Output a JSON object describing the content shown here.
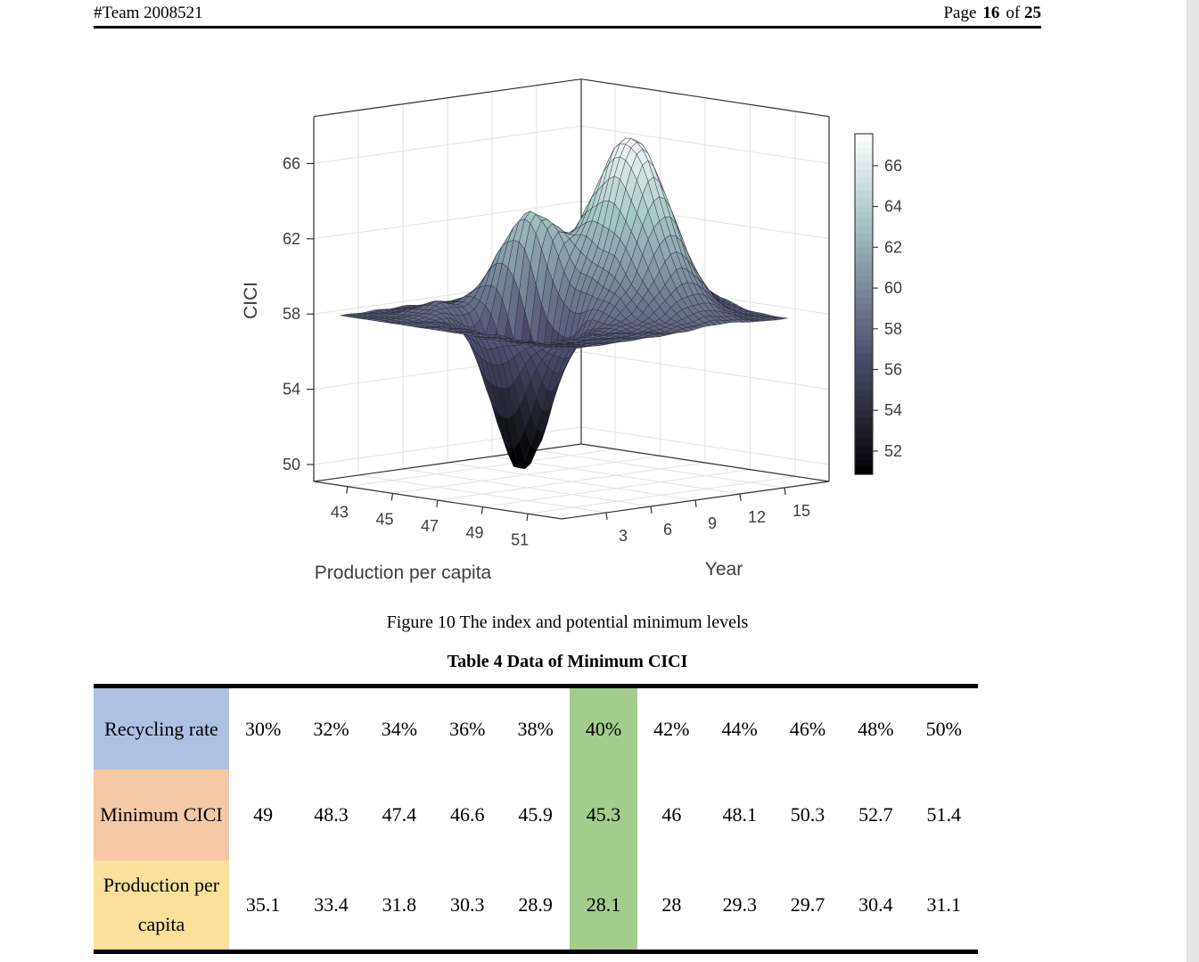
{
  "header": {
    "team": "#Team 2008521",
    "page_label": "Page",
    "page_number": "16",
    "of_label": "of",
    "page_total": "25"
  },
  "figure": {
    "caption": "Figure 10 The index and potential minimum levels"
  },
  "chart_data": {
    "type": "surface",
    "title": "",
    "xlabel": "Production per capita",
    "ylabel": "Year",
    "zlabel": "CICI",
    "x_ticks": [
      43,
      45,
      47,
      49,
      51
    ],
    "y_ticks": [
      3,
      6,
      9,
      12,
      15
    ],
    "z_ticks": [
      50,
      54,
      58,
      62,
      66
    ],
    "x_range": [
      41.5,
      52.5
    ],
    "y_range": [
      0,
      18
    ],
    "z_range": [
      49.1,
      68.5
    ],
    "surface_domain": {
      "x": [
        42,
        52
      ],
      "y": [
        1,
        16
      ]
    },
    "colormap": "bone",
    "color_range": [
      50.8,
      67.6
    ],
    "colorbar_ticks": [
      52,
      54,
      56,
      58,
      60,
      62,
      64,
      66
    ],
    "colorbar_range": [
      50.86,
      67.57
    ],
    "grid": true,
    "surface_model": {
      "base_level": 57.9,
      "features": [
        {
          "kind": "peak",
          "x": 48.0,
          "y": 11.5,
          "amp": 9.4,
          "sx": 1.45,
          "sy": 1.55,
          "note": "main peak, CICI ~ 67.3"
        },
        {
          "kind": "peak",
          "x": 46.0,
          "y": 7.6,
          "amp": 7.0,
          "sx": 1.1,
          "sy": 1.25,
          "note": "secondary peak, CICI ~ 62.3"
        },
        {
          "kind": "valley",
          "x": 46.8,
          "y": 6.0,
          "amp": -9.8,
          "sx": 1.05,
          "sy": 1.15,
          "note": "deep funnel, CICI ~ 50.5"
        },
        {
          "kind": "bump",
          "x": 44.3,
          "y": 4.6,
          "amp": 0.8,
          "sx": 0.8,
          "sy": 1.0
        },
        {
          "kind": "bump",
          "x": 48.5,
          "y": 15.3,
          "amp": 0.7,
          "sx": 0.9,
          "sy": 1.1
        },
        {
          "kind": "bump",
          "x": 48.9,
          "y": 8.3,
          "amp": 0.7,
          "sx": 0.7,
          "sy": 0.9
        },
        {
          "kind": "dip",
          "x": 49.5,
          "y": 3.5,
          "amp": -0.4,
          "sx": 1.1,
          "sy": 1.2
        }
      ],
      "ripple": {
        "amp": 0.15,
        "fx": 4.6,
        "fy": 3.2,
        "cx": 47.0,
        "cy": 8.5,
        "wx": 3.5,
        "wy": 5.0
      }
    }
  },
  "table": {
    "caption": "Table 4 Data of Minimum CICI",
    "highlight_col_index": 5,
    "highlight_color": "#a4cc8c",
    "rows": [
      {
        "label": "Recycling rate",
        "bg": "#aec1e4",
        "values": [
          "30%",
          "32%",
          "34%",
          "36%",
          "38%",
          "40%",
          "42%",
          "44%",
          "46%",
          "48%",
          "50%"
        ]
      },
      {
        "label": "Minimum CICI",
        "bg": "#f5c9a6",
        "values": [
          "49",
          "48.3",
          "47.4",
          "46.6",
          "45.9",
          "45.3",
          "46",
          "48.1",
          "50.3",
          "52.7",
          "51.4"
        ]
      },
      {
        "label": "Production per capita",
        "bg": "#fbe09c",
        "values": [
          "35.1",
          "33.4",
          "31.8",
          "30.3",
          "28.9",
          "28.1",
          "28",
          "29.3",
          "29.7",
          "30.4",
          "31.1"
        ]
      }
    ]
  }
}
